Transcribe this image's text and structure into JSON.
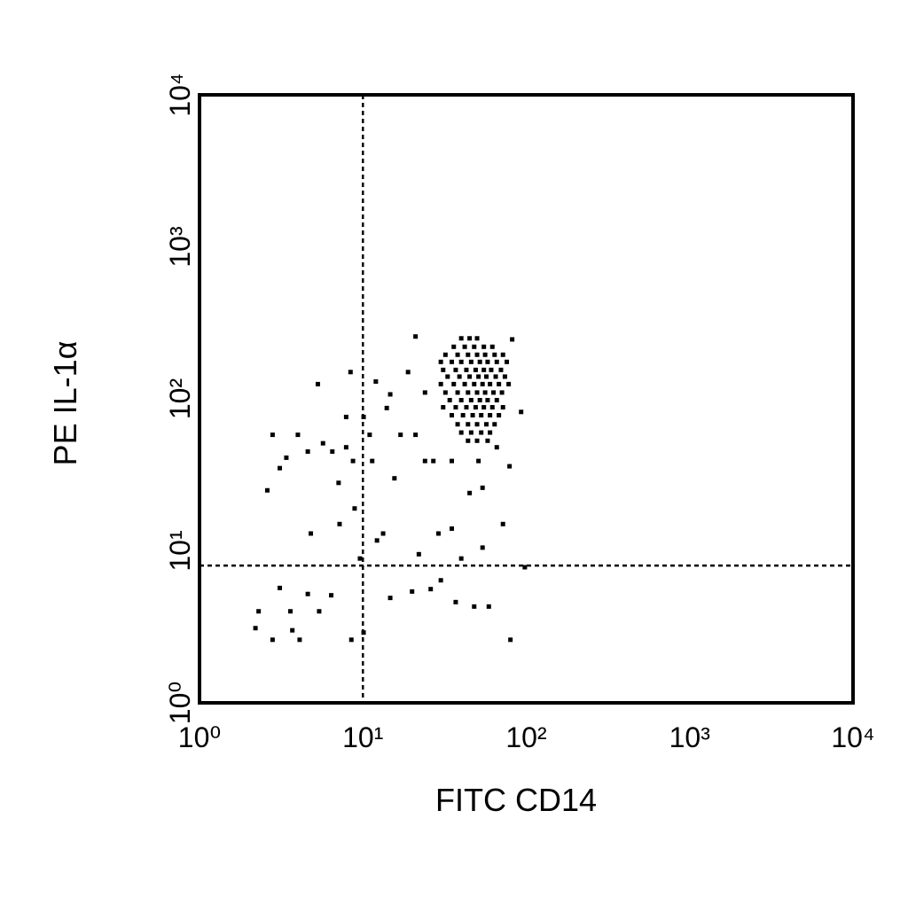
{
  "chart_data": {
    "type": "scatter",
    "x_label": "FITC CD14",
    "y_label": "PE IL-1α",
    "xlim": [
      1,
      10000
    ],
    "ylim": [
      1,
      10000
    ],
    "log_x": true,
    "log_y": true,
    "xticks": [
      {
        "value": 1,
        "label": "10⁰"
      },
      {
        "value": 10,
        "label": "10¹"
      },
      {
        "value": 100,
        "label": "10²"
      },
      {
        "value": 1000,
        "label": "10³"
      },
      {
        "value": 10000,
        "label": "10⁴"
      }
    ],
    "yticks": [
      {
        "value": 1,
        "label": "10⁰"
      },
      {
        "value": 10,
        "label": "10¹"
      },
      {
        "value": 100,
        "label": "10²"
      },
      {
        "value": 1000,
        "label": "10³"
      },
      {
        "value": 10000,
        "label": "10⁴"
      }
    ],
    "gates": {
      "x": 10,
      "y": 8
    },
    "color": "#000000",
    "x": [
      2.2,
      2.3,
      2.8,
      2.6,
      3.1,
      3.4,
      4.0,
      5.3,
      4.8,
      3.1,
      3.6,
      3.7,
      2.8,
      4.1,
      4.6,
      5.4,
      6.4,
      4.6,
      5.7,
      7.1,
      7.2,
      7.9,
      8.4,
      8.7,
      8.9,
      9.6,
      8.5,
      10.1,
      11,
      11.4,
      12.2,
      13.3,
      14.7,
      15.6,
      17,
      14.7,
      18.9,
      20,
      21,
      22,
      24,
      26,
      29,
      30,
      35,
      37,
      40,
      48,
      54,
      59,
      72,
      80,
      98,
      93,
      82,
      54,
      45,
      35,
      27,
      21,
      24,
      51,
      66,
      79,
      14,
      12,
      10.1,
      7.9,
      6.5,
      40,
      45,
      50,
      36,
      42,
      48,
      55,
      62,
      32,
      38,
      44,
      50,
      56,
      64,
      72,
      30,
      35,
      40,
      46,
      52,
      58,
      66,
      76,
      31,
      37,
      43,
      49,
      55,
      61,
      70,
      33,
      39,
      45,
      51,
      57,
      65,
      74,
      30,
      36,
      42,
      48,
      54,
      60,
      68,
      78,
      32,
      38,
      44,
      50,
      56,
      63,
      71,
      34,
      40,
      46,
      52,
      58,
      66,
      31,
      37,
      43,
      49,
      55,
      62,
      72,
      35,
      41,
      47,
      53,
      60,
      68,
      38,
      44,
      50,
      57,
      64,
      40,
      46,
      53,
      60,
      44,
      50,
      58
    ],
    "y": [
      3.1,
      4.0,
      58,
      25,
      35,
      41,
      58,
      125,
      13,
      5.7,
      4.0,
      3.0,
      2.6,
      2.6,
      5.2,
      4.0,
      5.1,
      45,
      51,
      28,
      15,
      76,
      150,
      39,
      19,
      8.9,
      2.6,
      2.9,
      58,
      39,
      11.7,
      13,
      4.9,
      30,
      58,
      107,
      150,
      5.4,
      257,
      9.5,
      110,
      5.6,
      13,
      6.4,
      14,
      4.6,
      8.9,
      4.3,
      10.5,
      4.3,
      15,
      2.6,
      7.8,
      82,
      246,
      26,
      24,
      39,
      39,
      58,
      39,
      39,
      48,
      36,
      87,
      130,
      76,
      48,
      45,
      250,
      250,
      250,
      220,
      220,
      220,
      220,
      220,
      195,
      195,
      195,
      195,
      195,
      195,
      195,
      175,
      175,
      175,
      175,
      175,
      175,
      175,
      175,
      155,
      155,
      155,
      155,
      155,
      155,
      155,
      140,
      140,
      140,
      140,
      140,
      140,
      140,
      125,
      125,
      125,
      125,
      125,
      125,
      125,
      125,
      110,
      110,
      110,
      110,
      110,
      110,
      110,
      98,
      98,
      98,
      98,
      98,
      98,
      88,
      88,
      88,
      88,
      88,
      88,
      88,
      78,
      78,
      78,
      78,
      78,
      78,
      68,
      68,
      68,
      68,
      68,
      60,
      60,
      60,
      60,
      53,
      53,
      53
    ]
  }
}
